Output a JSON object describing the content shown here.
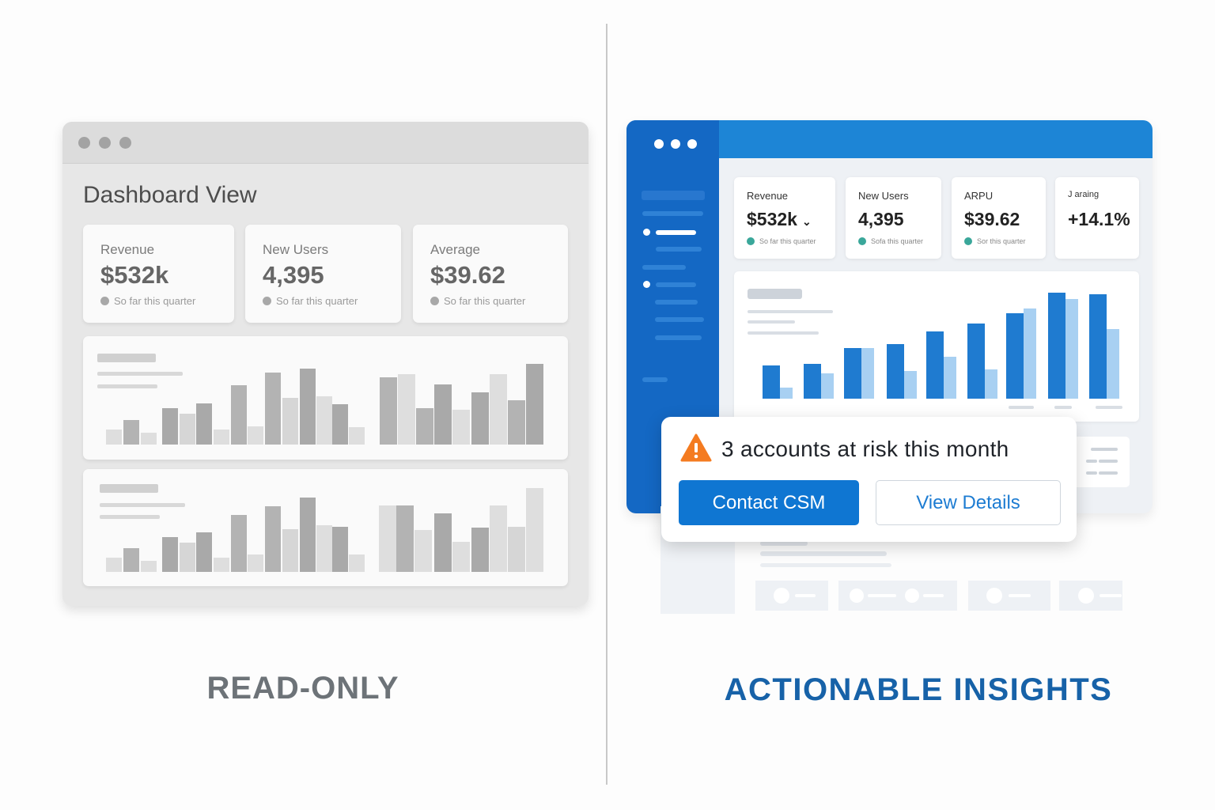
{
  "left": {
    "title": "Dashboard View",
    "cards": [
      {
        "label": "Revenue",
        "value": "$532k",
        "note": "So far this quarter"
      },
      {
        "label": "New Users",
        "value": "4,395",
        "note": "So far this quarter"
      },
      {
        "label": "Average",
        "value": "$39.62",
        "note": "So far this quarter"
      }
    ],
    "caption": "READ-ONLY"
  },
  "right": {
    "cards": [
      {
        "label": "Revenue",
        "value": "$532k",
        "note": "So far this quarter"
      },
      {
        "label": "New Users",
        "value": "4,395",
        "note": "Sofa this quarter"
      },
      {
        "label": "ARPU",
        "value": "$39.62",
        "note": "Sor this quarter"
      },
      {
        "label": "J araing",
        "value": "+14.1%"
      }
    ],
    "alert": {
      "message": "3 accounts at risk this month",
      "primary_label": "Contact CSM",
      "secondary_label": "View Details"
    },
    "caption": "ACTIONABLE INSIGHTS"
  },
  "colors": {
    "accent": "#1d85d6",
    "sidebar": "#1468c4",
    "warning": "#f47b20",
    "bar_dark": "#1f7bd0",
    "bar_light": "#a8d0f2"
  }
}
